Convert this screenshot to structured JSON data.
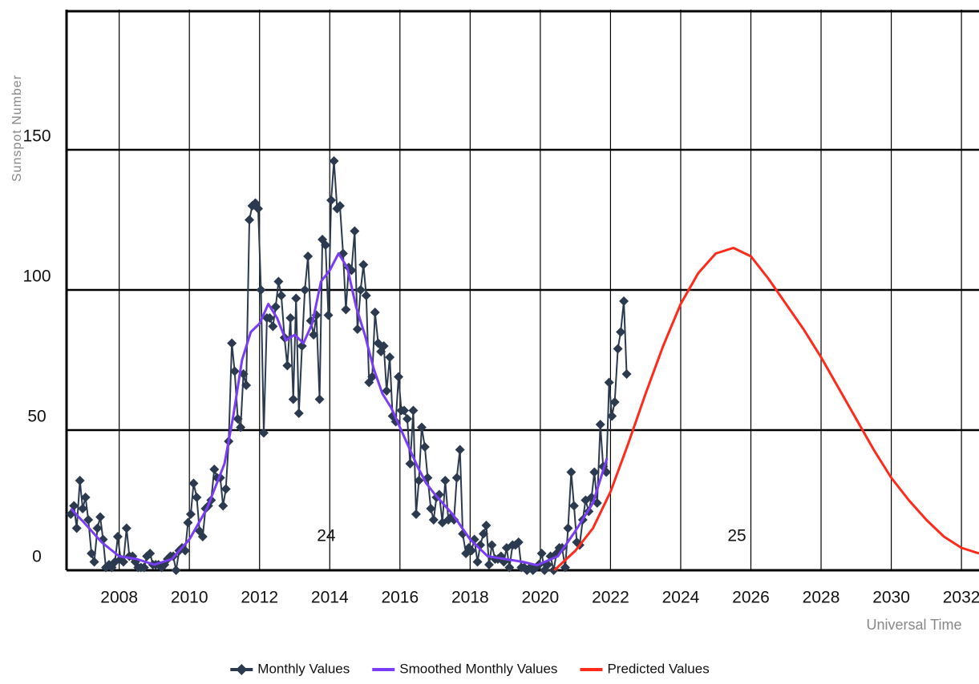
{
  "chart_data": {
    "type": "line",
    "ylabel": "Sunspot Number",
    "xlabel": "Universal Time",
    "xlim": [
      2006.5,
      2032.5
    ],
    "ylim": [
      0,
      200
    ],
    "xticks": [
      2008,
      2010,
      2012,
      2014,
      2016,
      2018,
      2020,
      2022,
      2024,
      2026,
      2028,
      2030,
      2032
    ],
    "yticks": [
      0,
      50,
      100,
      150
    ],
    "grid": true,
    "legend": "bottom",
    "annotations": [
      {
        "text": "24",
        "x": 2013.9,
        "y": 12
      },
      {
        "text": "25",
        "x": 2025.6,
        "y": 12
      }
    ],
    "series": [
      {
        "name": "Monthly Values",
        "color": "#2b3a4e",
        "marker": "diamond",
        "x": [
          2006.62,
          2006.71,
          2006.79,
          2006.88,
          2006.96,
          2007.04,
          2007.12,
          2007.21,
          2007.29,
          2007.38,
          2007.46,
          2007.54,
          2007.62,
          2007.71,
          2007.79,
          2007.88,
          2007.96,
          2008.04,
          2008.12,
          2008.21,
          2008.29,
          2008.38,
          2008.46,
          2008.54,
          2008.62,
          2008.71,
          2008.79,
          2008.88,
          2008.96,
          2009.04,
          2009.12,
          2009.21,
          2009.29,
          2009.38,
          2009.46,
          2009.54,
          2009.62,
          2009.71,
          2009.79,
          2009.88,
          2009.96,
          2010.04,
          2010.12,
          2010.21,
          2010.29,
          2010.38,
          2010.46,
          2010.54,
          2010.62,
          2010.71,
          2010.79,
          2010.88,
          2010.96,
          2011.04,
          2011.12,
          2011.21,
          2011.29,
          2011.38,
          2011.46,
          2011.54,
          2011.62,
          2011.71,
          2011.79,
          2011.88,
          2011.96,
          2012.04,
          2012.12,
          2012.21,
          2012.29,
          2012.38,
          2012.46,
          2012.54,
          2012.62,
          2012.71,
          2012.79,
          2012.88,
          2012.96,
          2013.04,
          2013.12,
          2013.21,
          2013.29,
          2013.38,
          2013.46,
          2013.54,
          2013.62,
          2013.71,
          2013.79,
          2013.88,
          2013.96,
          2014.04,
          2014.12,
          2014.21,
          2014.29,
          2014.38,
          2014.46,
          2014.54,
          2014.62,
          2014.71,
          2014.79,
          2014.88,
          2014.96,
          2015.04,
          2015.12,
          2015.21,
          2015.29,
          2015.38,
          2015.46,
          2015.54,
          2015.62,
          2015.71,
          2015.79,
          2015.88,
          2015.96,
          2016.04,
          2016.12,
          2016.21,
          2016.29,
          2016.38,
          2016.46,
          2016.54,
          2016.62,
          2016.71,
          2016.79,
          2016.88,
          2016.96,
          2017.04,
          2017.12,
          2017.21,
          2017.29,
          2017.38,
          2017.46,
          2017.54,
          2017.62,
          2017.71,
          2017.79,
          2017.88,
          2017.96,
          2018.04,
          2018.12,
          2018.21,
          2018.29,
          2018.38,
          2018.46,
          2018.54,
          2018.62,
          2018.71,
          2018.79,
          2018.88,
          2018.96,
          2019.04,
          2019.12,
          2019.21,
          2019.29,
          2019.38,
          2019.46,
          2019.54,
          2019.62,
          2019.71,
          2019.79,
          2019.88,
          2019.96,
          2020.04,
          2020.12,
          2020.21,
          2020.29,
          2020.38,
          2020.46,
          2020.54,
          2020.62,
          2020.71,
          2020.79,
          2020.88,
          2020.96,
          2021.04,
          2021.12,
          2021.21,
          2021.29,
          2021.38,
          2021.46,
          2021.54,
          2021.62,
          2021.71,
          2021.79,
          2021.88,
          2021.96,
          2022.04,
          2022.12,
          2022.21,
          2022.29,
          2022.38,
          2022.46
        ],
        "values": [
          20,
          23,
          15,
          32,
          22,
          26,
          18,
          6,
          3,
          15,
          19,
          11,
          1,
          2,
          1,
          3,
          12,
          4,
          3,
          15,
          5,
          5,
          3,
          1,
          1,
          1,
          5,
          6,
          2,
          2,
          2,
          1,
          2,
          4,
          5,
          5,
          0,
          7,
          8,
          7,
          17,
          20,
          31,
          26,
          14,
          12,
          22,
          23,
          25,
          36,
          33,
          33,
          23,
          29,
          46,
          81,
          71,
          54,
          51,
          70,
          66,
          125,
          130,
          131,
          129,
          100,
          49,
          90,
          90,
          87,
          94,
          103,
          98,
          83,
          73,
          90,
          61,
          97,
          56,
          80,
          100,
          112,
          89,
          84,
          91,
          61,
          118,
          116,
          91,
          132,
          146,
          129,
          130,
          113,
          93,
          108,
          107,
          121,
          86,
          100,
          109,
          98,
          67,
          69,
          92,
          81,
          78,
          80,
          64,
          76,
          55,
          53,
          69,
          57,
          57,
          54,
          38,
          57,
          20,
          32,
          51,
          44,
          33,
          22,
          18,
          26,
          27,
          17,
          32,
          18,
          19,
          18,
          33,
          43,
          13,
          6,
          8,
          7,
          11,
          3,
          9,
          13,
          16,
          2,
          9,
          4,
          4,
          5,
          3,
          8,
          1,
          9,
          9,
          10,
          1,
          1,
          0,
          1,
          0,
          1,
          2,
          6,
          0,
          2,
          5,
          0,
          6,
          8,
          8,
          1,
          15,
          35,
          23,
          10,
          9,
          18,
          25,
          21,
          26,
          35,
          24,
          52,
          37,
          35,
          67,
          55,
          60,
          79,
          85,
          96,
          70
        ]
      },
      {
        "name": "Smoothed Monthly Values",
        "color": "#7b3cf5",
        "x": [
          2006.62,
          2007.0,
          2007.5,
          2008.0,
          2008.5,
          2009.0,
          2009.5,
          2010.0,
          2010.5,
          2011.0,
          2011.25,
          2011.5,
          2011.75,
          2012.0,
          2012.25,
          2012.5,
          2012.75,
          2013.0,
          2013.25,
          2013.5,
          2013.75,
          2014.0,
          2014.25,
          2014.5,
          2014.75,
          2015.0,
          2015.25,
          2015.5,
          2015.75,
          2016.0,
          2016.25,
          2016.5,
          2016.75,
          2017.0,
          2017.5,
          2018.0,
          2018.5,
          2019.0,
          2019.5,
          2019.9,
          2020.5,
          2021.0,
          2021.5,
          2021.9
        ],
        "values": [
          22,
          17,
          10,
          5,
          4,
          2,
          4,
          11,
          22,
          38,
          55,
          75,
          85,
          88,
          95,
          90,
          82,
          84,
          81,
          88,
          103,
          107,
          113,
          108,
          94,
          84,
          72,
          63,
          58,
          51,
          44,
          37,
          31,
          27,
          20,
          11,
          5,
          4,
          3,
          1.8,
          5,
          14,
          24,
          40
        ]
      },
      {
        "name": "Predicted Values",
        "color": "#ff2a1a",
        "x": [
          2020.4,
          2021.0,
          2021.5,
          2022.0,
          2022.5,
          2023.0,
          2023.5,
          2024.0,
          2024.5,
          2025.0,
          2025.5,
          2026.0,
          2026.5,
          2027.0,
          2027.5,
          2028.0,
          2028.5,
          2029.0,
          2029.5,
          2030.0,
          2030.5,
          2031.0,
          2031.5,
          2032.0,
          2032.5
        ],
        "values": [
          0,
          7,
          15,
          28,
          45,
          63,
          80,
          95,
          106,
          113,
          115,
          112,
          104,
          95,
          86,
          76,
          65,
          54,
          43,
          33,
          25,
          18,
          12,
          8,
          6
        ]
      }
    ]
  }
}
